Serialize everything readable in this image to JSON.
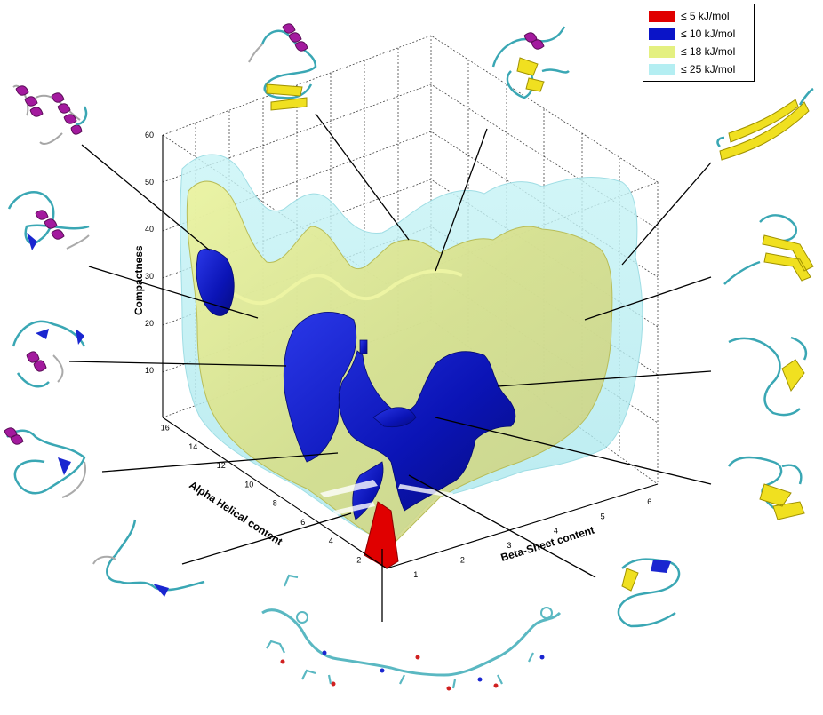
{
  "chart_data": {
    "type": "isosurface-3d",
    "xlabel": "Alpha Helical content",
    "ylabel": "Beta-Sheet content",
    "zlabel": "Compactness",
    "xlim": [
      1,
      16
    ],
    "ylim": [
      0,
      6
    ],
    "zlim": [
      0,
      60
    ],
    "x_ticks": [
      "2",
      "4",
      "6",
      "8",
      "10",
      "12",
      "14",
      "16"
    ],
    "y_ticks": [
      "1",
      "2",
      "3",
      "4",
      "5",
      "6"
    ],
    "z_ticks": [
      "10",
      "20",
      "30",
      "40",
      "50",
      "60"
    ],
    "grid": true,
    "legend_position": "top-right",
    "legend": [
      {
        "label": "≤ 5 kJ/mol",
        "color": "#e00000"
      },
      {
        "label": "≤ 10 kJ/mol",
        "color": "#0a14c8"
      },
      {
        "label": "≤ 18 kJ/mol",
        "color": "#e4f080"
      },
      {
        "label": "≤ 25 kJ/mol",
        "color": "#b4eef2"
      }
    ]
  },
  "colors": {
    "helix": "#a31a9e",
    "strand": "#f0e020",
    "coil": "#3aa7b4",
    "turn": "#1a26d0",
    "free_energy_basin": "#e00000"
  },
  "structures": [
    {
      "name": "helix-hairpin-top-left",
      "icon": "protein-structure-icon"
    },
    {
      "name": "helix-top-center",
      "icon": "protein-structure-icon"
    },
    {
      "name": "mixed-top-right",
      "icon": "protein-structure-icon"
    },
    {
      "name": "beta-hairpin-right",
      "icon": "protein-structure-icon"
    },
    {
      "name": "random-coil-bottom",
      "icon": "protein-structure-icon"
    }
  ]
}
